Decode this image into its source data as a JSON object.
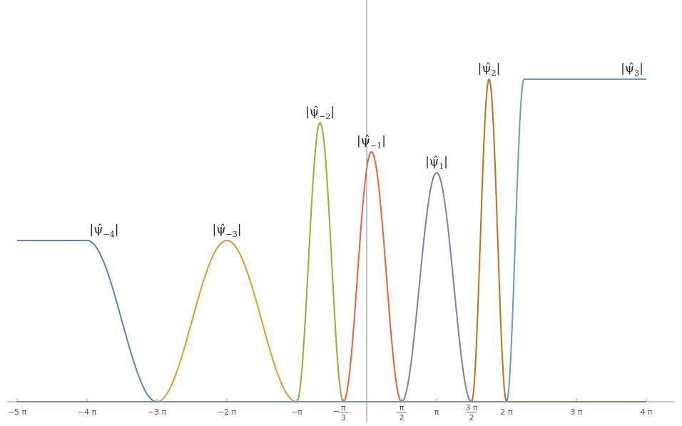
{
  "chart_data": {
    "type": "line",
    "title": "",
    "xlabel": "",
    "ylabel": "",
    "xlim_over_pi": [
      -5,
      4
    ],
    "x_ticks": [
      {
        "value_over_pi": -5,
        "label": "−5 π"
      },
      {
        "value_over_pi": -4,
        "label": "−4 π"
      },
      {
        "value_over_pi": -3,
        "label": "−3 π"
      },
      {
        "value_over_pi": -2,
        "label": "−2 π"
      },
      {
        "value_over_pi": -1,
        "label": "−π"
      },
      {
        "value_over_pi": -0.3333,
        "label_prefix": "−",
        "label_num": "π",
        "label_den": "3"
      },
      {
        "value_over_pi": 0.5,
        "label_num": "π",
        "label_den": "2"
      },
      {
        "value_over_pi": 1,
        "label": "π"
      },
      {
        "value_over_pi": 1.5,
        "label_num": "3 π",
        "label_den": "2"
      },
      {
        "value_over_pi": 2,
        "label": "2 π"
      },
      {
        "value_over_pi": 3,
        "label": "3 π"
      },
      {
        "value_over_pi": 4,
        "label": "4 π"
      }
    ],
    "y_axis_position_over_pi": 0,
    "series": [
      {
        "label_base": "|ψ̂",
        "label_sub": "−4",
        "color": "#5E81B5",
        "shape": "step_down",
        "start_over_pi": -5,
        "flat_end_over_pi": -4,
        "zero_at_over_pi": -3,
        "peak": 1.0
      },
      {
        "label_base": "|ψ̂",
        "label_sub": "−3",
        "color": "#E19C24",
        "shape": "bump",
        "left_over_pi": -3,
        "peak_over_pi": -2,
        "right_over_pi": -1,
        "peak": 1.0
      },
      {
        "label_base": "|ψ̂",
        "label_sub": "−2",
        "color": "#8FB032",
        "shape": "bump",
        "left_over_pi": -1,
        "peak_over_pi": -0.6667,
        "right_over_pi": -0.3333,
        "peak": 1.73
      },
      {
        "label_base": "|ψ̂",
        "label_sub": "−1",
        "color": "#EB6235",
        "shape": "bump",
        "left_over_pi": -0.3333,
        "peak_over_pi": 0.0667,
        "right_over_pi": 0.5,
        "peak": 1.55
      },
      {
        "label_base": "|ψ̂",
        "label_sub": "1",
        "color": "#8778B3",
        "shape": "bump",
        "left_over_pi": 0.5,
        "peak_over_pi": 1.0,
        "right_over_pi": 1.5,
        "peak": 1.42
      },
      {
        "label_base": "|ψ̂",
        "label_sub": "2",
        "color": "#C56E1A",
        "shape": "bump",
        "left_over_pi": 1.5,
        "peak_over_pi": 1.75,
        "right_over_pi": 2.0,
        "peak": 2.0
      },
      {
        "label_base": "|ψ̂",
        "label_sub": "3",
        "color": "#5D9EC7",
        "shape": "step_up",
        "zero_until_over_pi": 2.0,
        "flat_start_over_pi": 2.25,
        "end_over_pi": 4.0,
        "peak": 2.0
      }
    ],
    "ylim": [
      0,
      2.2
    ],
    "grid": false,
    "legend": "none"
  }
}
